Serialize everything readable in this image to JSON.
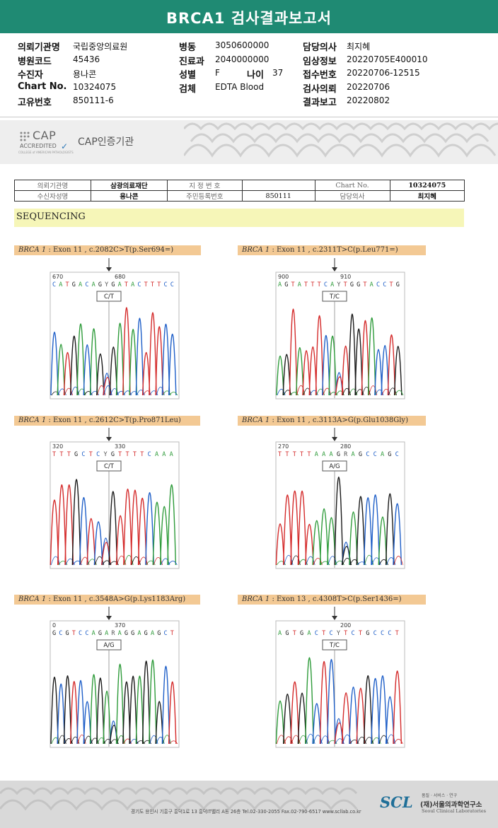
{
  "header": {
    "title": "BRCA1 검사결과보고서"
  },
  "info": {
    "left": [
      {
        "label": "의뢰기관명",
        "value": "국립중앙의료원"
      },
      {
        "label": "병원코드",
        "value": "45436"
      },
      {
        "label": "수진자",
        "value": "용나콘"
      },
      {
        "label": "Chart No.",
        "value": "10324075"
      },
      {
        "label": "고유번호",
        "value": "850111-6"
      }
    ],
    "mid": [
      {
        "label": "병동",
        "value": "3050600000"
      },
      {
        "label": "진료과",
        "value": "2040000000"
      },
      {
        "label": "성별",
        "value": "F"
      },
      {
        "label": "검체",
        "value": "EDTA Blood"
      }
    ],
    "age": {
      "label": "나이",
      "value": "37"
    },
    "right": [
      {
        "label": "담당의사",
        "value": "최지혜"
      },
      {
        "label": "임상정보",
        "value": "20220705E400010"
      },
      {
        "label": "접수번호",
        "value": "20220706-12515"
      },
      {
        "label": "검사의뢰",
        "value": "20220706"
      },
      {
        "label": "결과보고",
        "value": "20220802"
      }
    ]
  },
  "cap": {
    "logo_text": "CAP",
    "accredited": "ACCREDITED",
    "check": "✓",
    "tiny": "COLLEGE of AMERICAN PATHOLOGISTS",
    "cert_label": "CAP인증기관"
  },
  "patient_table": {
    "r1": [
      "의뢰기관명",
      "삼광의료재단",
      "지 정 번 호",
      "",
      "Chart No.",
      "10324075"
    ],
    "r2": [
      "수신자성명",
      "용나콘",
      "주민등록번호",
      "850111",
      "담당의사",
      "최지혜"
    ]
  },
  "section": {
    "title": "SEQUENCING"
  },
  "variants": [
    {
      "gene": "BRCA 1",
      "desc": ": Exon 11 , c.2082C>T(p.Ser694=)",
      "pos_l": "670",
      "pos_r": "680",
      "seq": "C A T G A C A G Y G A T A C T T T C C",
      "call": "C/T"
    },
    {
      "gene": "BRCA 1",
      "desc": ": Exon 11 , c.2311T>C(p.Leu771=)",
      "pos_l": "900",
      "pos_r": "910",
      "seq": "A G T A T T T C A Y T G G T A C C T G",
      "call": "T/C"
    },
    {
      "gene": "BRCA 1",
      "desc": ": Exon 11 , c.2612C>T(p.Pro871Leu)",
      "pos_l": "320",
      "pos_r": "330",
      "seq": "T T T G C T C Y G T T T T C A A A",
      "call": "C/T"
    },
    {
      "gene": "BRCA 1",
      "desc": ": Exon 11 , c.3113A>G(p.Glu1038Gly)",
      "pos_l": "270",
      "pos_r": "280",
      "seq": "T T T T T A A A G R A G C C A G C",
      "call": "A/G"
    },
    {
      "gene": "BRCA 1",
      "desc": ": Exon 11 , c.3548A>G(p.Lys1183Arg)",
      "pos_l": "0",
      "pos_r": "370",
      "seq": "G C G T C C A G A R A G G A G A G C T",
      "call": "A/G"
    },
    {
      "gene": "BRCA 1",
      "desc": ": Exon 13 , c.4308T>C(p.Ser1436=)",
      "pos_l": "",
      "pos_r": "200",
      "seq": "A G T G A C T C Y T C T G C C C T",
      "call": "T/C"
    }
  ],
  "footer": {
    "address": "경기도 용인시 기흥구 흥덕1로 13 흥덕IT밸리 A동 26층   Tel.02-330-2055  Fax.02-790-6517  www.scllab.co.kr",
    "logo": "SCL",
    "tagline": "품질 · 서비스 · 연구",
    "org": "(재)서울의과학연구소",
    "org_en": "Seoul Clinical Laboratories"
  },
  "colors": {
    "header": "#1f8a73",
    "A": "#2e9b3a",
    "C": "#1f5fc8",
    "G": "#1a1a1a",
    "T": "#d42a2a"
  }
}
